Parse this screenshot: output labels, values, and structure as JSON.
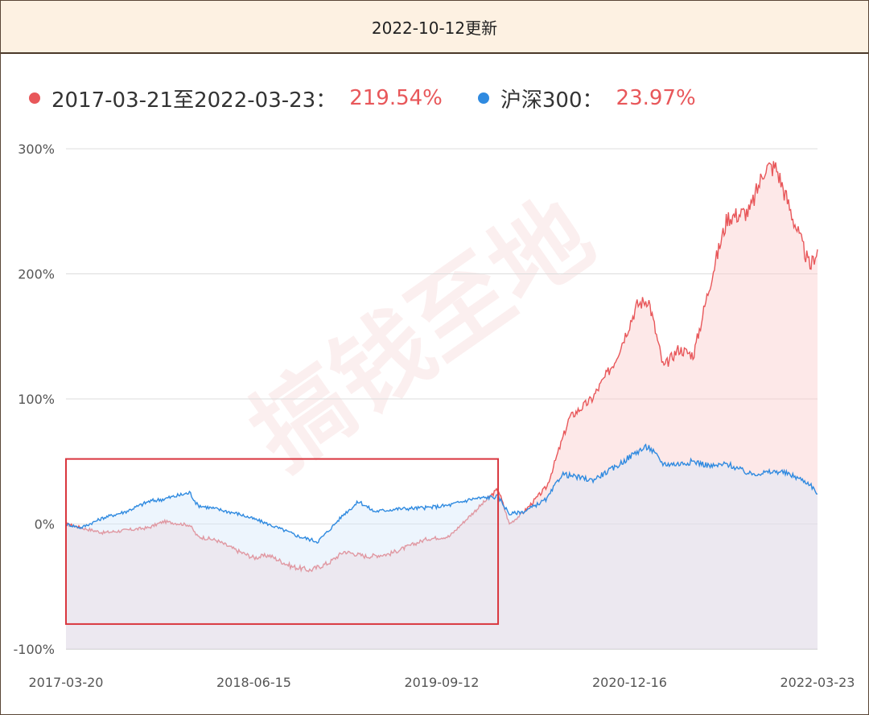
{
  "header": {
    "title": "2022-10-12更新"
  },
  "watermark": "搞钱至地",
  "legend": [
    {
      "label": "2017-03-21至2022-03-23：",
      "value": "219.54%",
      "color": "#e8575a"
    },
    {
      "label": "沪深300：",
      "value": "23.97%",
      "color": "#2f8ae0"
    }
  ],
  "chart_data": {
    "type": "area",
    "x_ticks": [
      "2017-03-20",
      "2018-06-15",
      "2019-09-12",
      "2020-12-16",
      "2022-03-23"
    ],
    "y_ticks": [
      "300%",
      "200%",
      "100%",
      "0%",
      "-100%"
    ],
    "ylim": [
      -100,
      300
    ],
    "grid": true,
    "highlight_box": {
      "x_range": [
        0.0,
        0.575
      ],
      "y_range": [
        -80,
        52
      ],
      "color": "#d9363e"
    },
    "series": [
      {
        "color": "#e8575a",
        "fill": "rgba(250,205,205,0.45)",
        "keypoints": [
          [
            0.0,
            0
          ],
          [
            0.02,
            -3
          ],
          [
            0.05,
            -7
          ],
          [
            0.08,
            -5
          ],
          [
            0.11,
            -3
          ],
          [
            0.13,
            2
          ],
          [
            0.165,
            -1
          ],
          [
            0.175,
            -10
          ],
          [
            0.2,
            -13
          ],
          [
            0.23,
            -22
          ],
          [
            0.25,
            -27
          ],
          [
            0.27,
            -25
          ],
          [
            0.3,
            -34
          ],
          [
            0.325,
            -37
          ],
          [
            0.35,
            -31
          ],
          [
            0.37,
            -22
          ],
          [
            0.4,
            -26
          ],
          [
            0.43,
            -24
          ],
          [
            0.48,
            -12
          ],
          [
            0.51,
            -10
          ],
          [
            0.54,
            8
          ],
          [
            0.575,
            28
          ],
          [
            0.59,
            0
          ],
          [
            0.61,
            10
          ],
          [
            0.64,
            30
          ],
          [
            0.67,
            85
          ],
          [
            0.7,
            100
          ],
          [
            0.73,
            130
          ],
          [
            0.76,
            175
          ],
          [
            0.775,
            180
          ],
          [
            0.795,
            125
          ],
          [
            0.815,
            140
          ],
          [
            0.835,
            135
          ],
          [
            0.86,
            200
          ],
          [
            0.88,
            245
          ],
          [
            0.91,
            250
          ],
          [
            0.93,
            285
          ],
          [
            0.945,
            285
          ],
          [
            0.97,
            240
          ],
          [
            0.99,
            205
          ],
          [
            1.0,
            219.54
          ]
        ]
      },
      {
        "color": "#2f8ae0",
        "fill": "rgba(215,232,250,0.45)",
        "keypoints": [
          [
            0.0,
            0
          ],
          [
            0.02,
            -3
          ],
          [
            0.05,
            5
          ],
          [
            0.08,
            10
          ],
          [
            0.11,
            18
          ],
          [
            0.13,
            20
          ],
          [
            0.165,
            25
          ],
          [
            0.175,
            15
          ],
          [
            0.2,
            12
          ],
          [
            0.23,
            8
          ],
          [
            0.26,
            2
          ],
          [
            0.29,
            -5
          ],
          [
            0.31,
            -10
          ],
          [
            0.335,
            -14
          ],
          [
            0.35,
            -5
          ],
          [
            0.37,
            8
          ],
          [
            0.39,
            18
          ],
          [
            0.41,
            10
          ],
          [
            0.44,
            12
          ],
          [
            0.48,
            13
          ],
          [
            0.51,
            15
          ],
          [
            0.54,
            20
          ],
          [
            0.575,
            22
          ],
          [
            0.59,
            8
          ],
          [
            0.61,
            10
          ],
          [
            0.64,
            20
          ],
          [
            0.66,
            40
          ],
          [
            0.7,
            35
          ],
          [
            0.73,
            45
          ],
          [
            0.76,
            58
          ],
          [
            0.775,
            62
          ],
          [
            0.795,
            48
          ],
          [
            0.815,
            48
          ],
          [
            0.835,
            50
          ],
          [
            0.86,
            46
          ],
          [
            0.88,
            48
          ],
          [
            0.91,
            40
          ],
          [
            0.95,
            42
          ],
          [
            0.97,
            38
          ],
          [
            0.99,
            32
          ],
          [
            1.0,
            23.97
          ]
        ]
      }
    ]
  }
}
